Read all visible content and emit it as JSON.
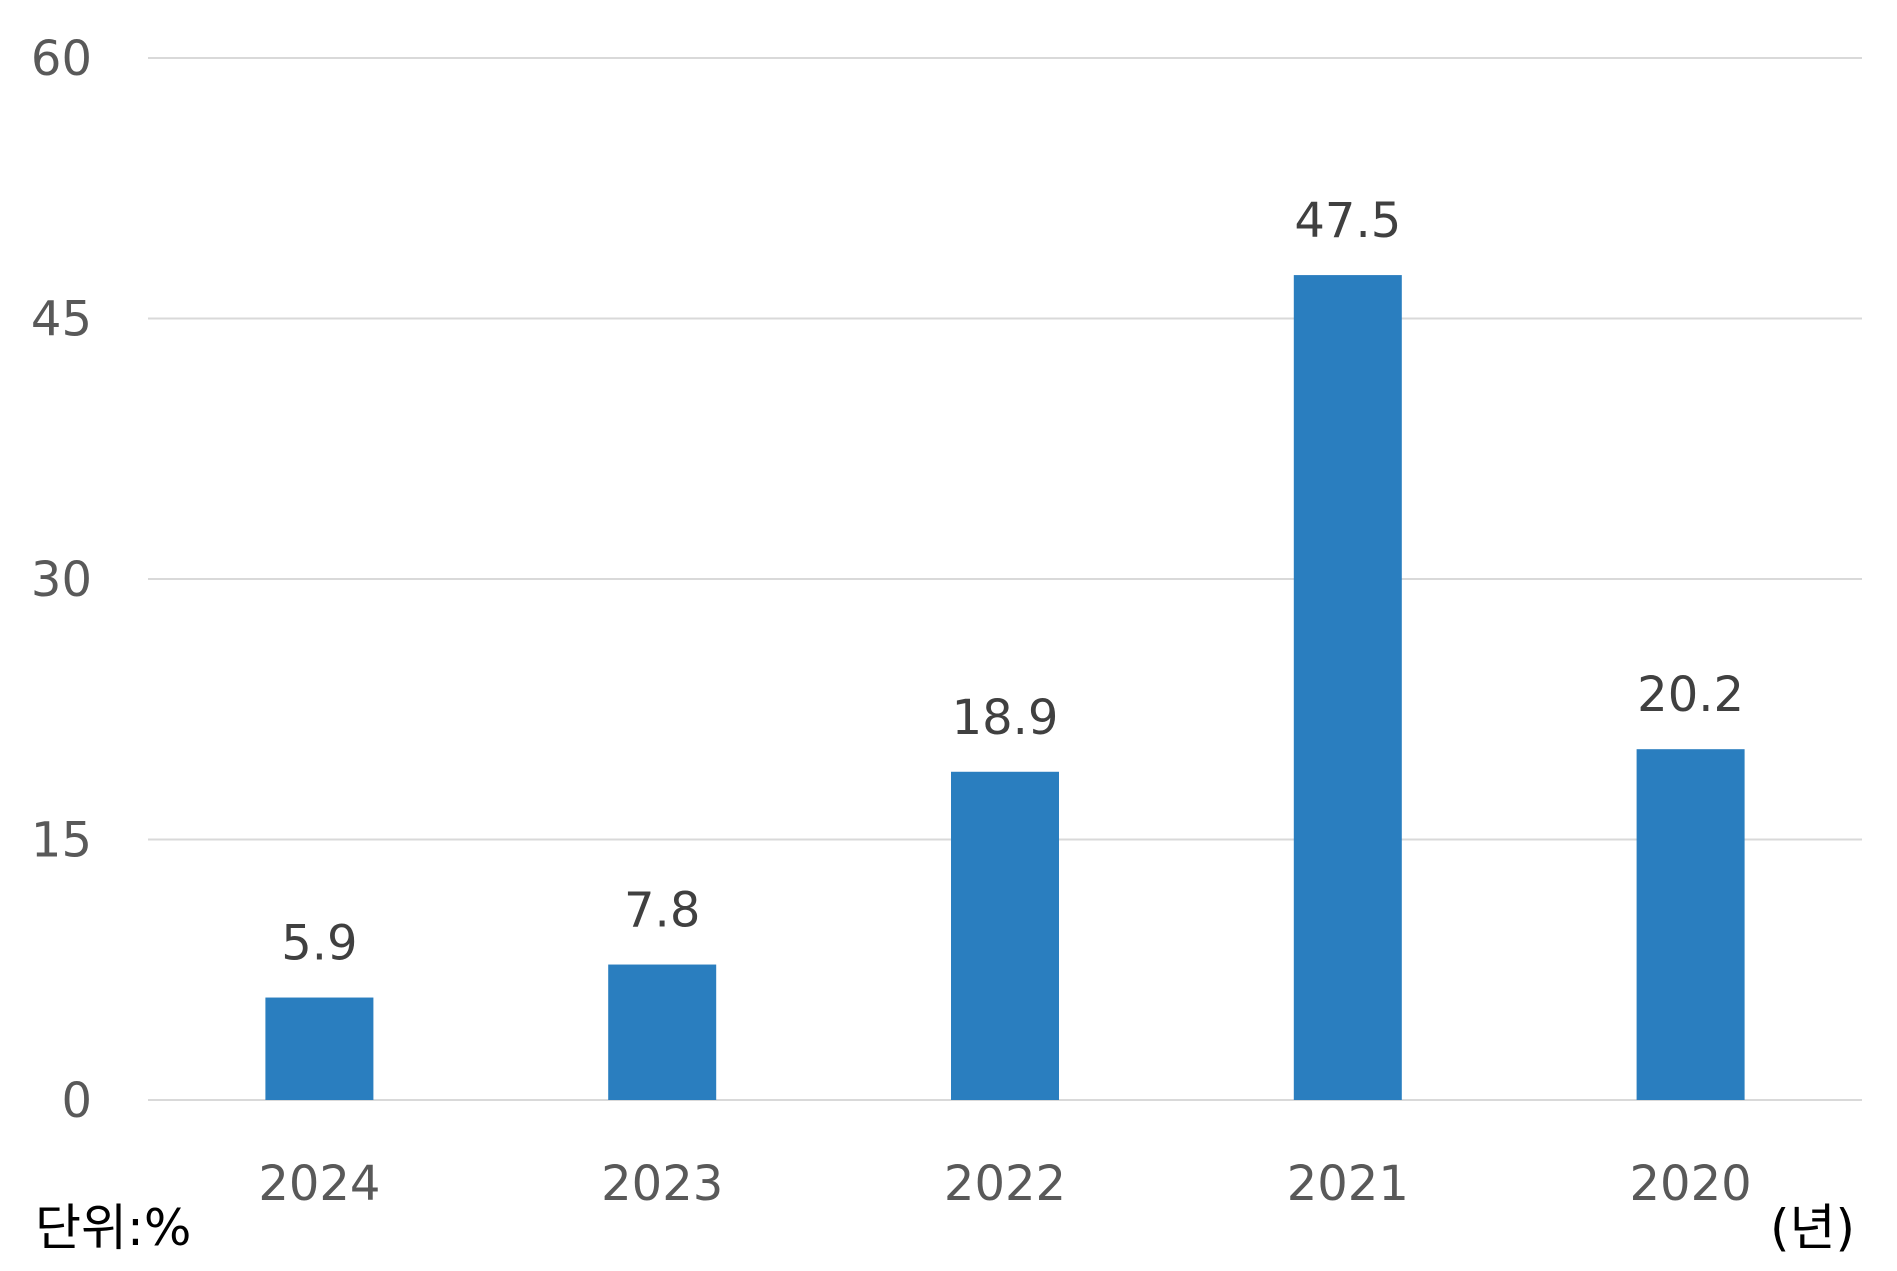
{
  "chart_data": {
    "type": "bar",
    "categories": [
      "2024",
      "2023",
      "2022",
      "2021",
      "2020"
    ],
    "values": [
      5.9,
      7.8,
      18.9,
      47.5,
      20.2
    ],
    "data_labels": [
      "5.9",
      "7.8",
      "18.9",
      "47.5",
      "20.2"
    ],
    "title": "",
    "xlabel": "(년)",
    "ylabel": "",
    "unit_note": "단위:%",
    "ylim": [
      0,
      60
    ],
    "yticks": [
      0,
      15,
      30,
      45,
      60
    ],
    "ytick_labels": [
      "0",
      "15",
      "30",
      "45",
      "60"
    ],
    "grid": true,
    "legend": "none",
    "colors": {
      "bar": "#2a7ebf",
      "grid": "#d9d9d9",
      "tick_text": "#595959",
      "label_text": "#404040"
    }
  }
}
